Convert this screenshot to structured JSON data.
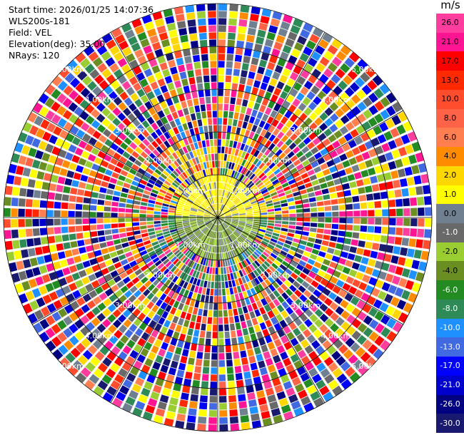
{
  "header": {
    "start_time": "Start time: 2026/01/25 14:07:36",
    "station": "WLS200s-181",
    "field": "Field: VEL",
    "elevation": "Elevation(deg): 35.00",
    "nrays": "NRays: 120"
  },
  "colorbar": {
    "unit": "m/s",
    "ticks": [
      "26.0",
      "21.0",
      "17.0",
      "13.0",
      "10.0",
      "8.0",
      "6.0",
      "4.0",
      "2.0",
      "1.0",
      "0.0",
      "-1.0",
      "-2.0",
      "-4.0",
      "-6.0",
      "-8.0",
      "-10.0",
      "-13.0",
      "-17.0",
      "-21.0",
      "-26.0",
      "-30.0"
    ],
    "colors": [
      "#ff3d9e",
      "#ff1493",
      "#ff0000",
      "#ff2a00",
      "#ff4d2e",
      "#ff6347",
      "#ff7f50",
      "#ff8c00",
      "#ffd700",
      "#ffff00",
      "#708090",
      "#696969",
      "#9acd32",
      "#6b8e23",
      "#228b22",
      "#2e8b57",
      "#1e90ff",
      "#4169e1",
      "#0000ff",
      "#0000cd",
      "#000080",
      "#191970"
    ]
  },
  "range_labels": [
    "1.00km",
    "2.00km",
    "3.00km",
    "4.00km",
    "5.00km"
  ],
  "ppi": {
    "rays": 120,
    "gates": 30,
    "max_range_km": 5.0
  }
}
